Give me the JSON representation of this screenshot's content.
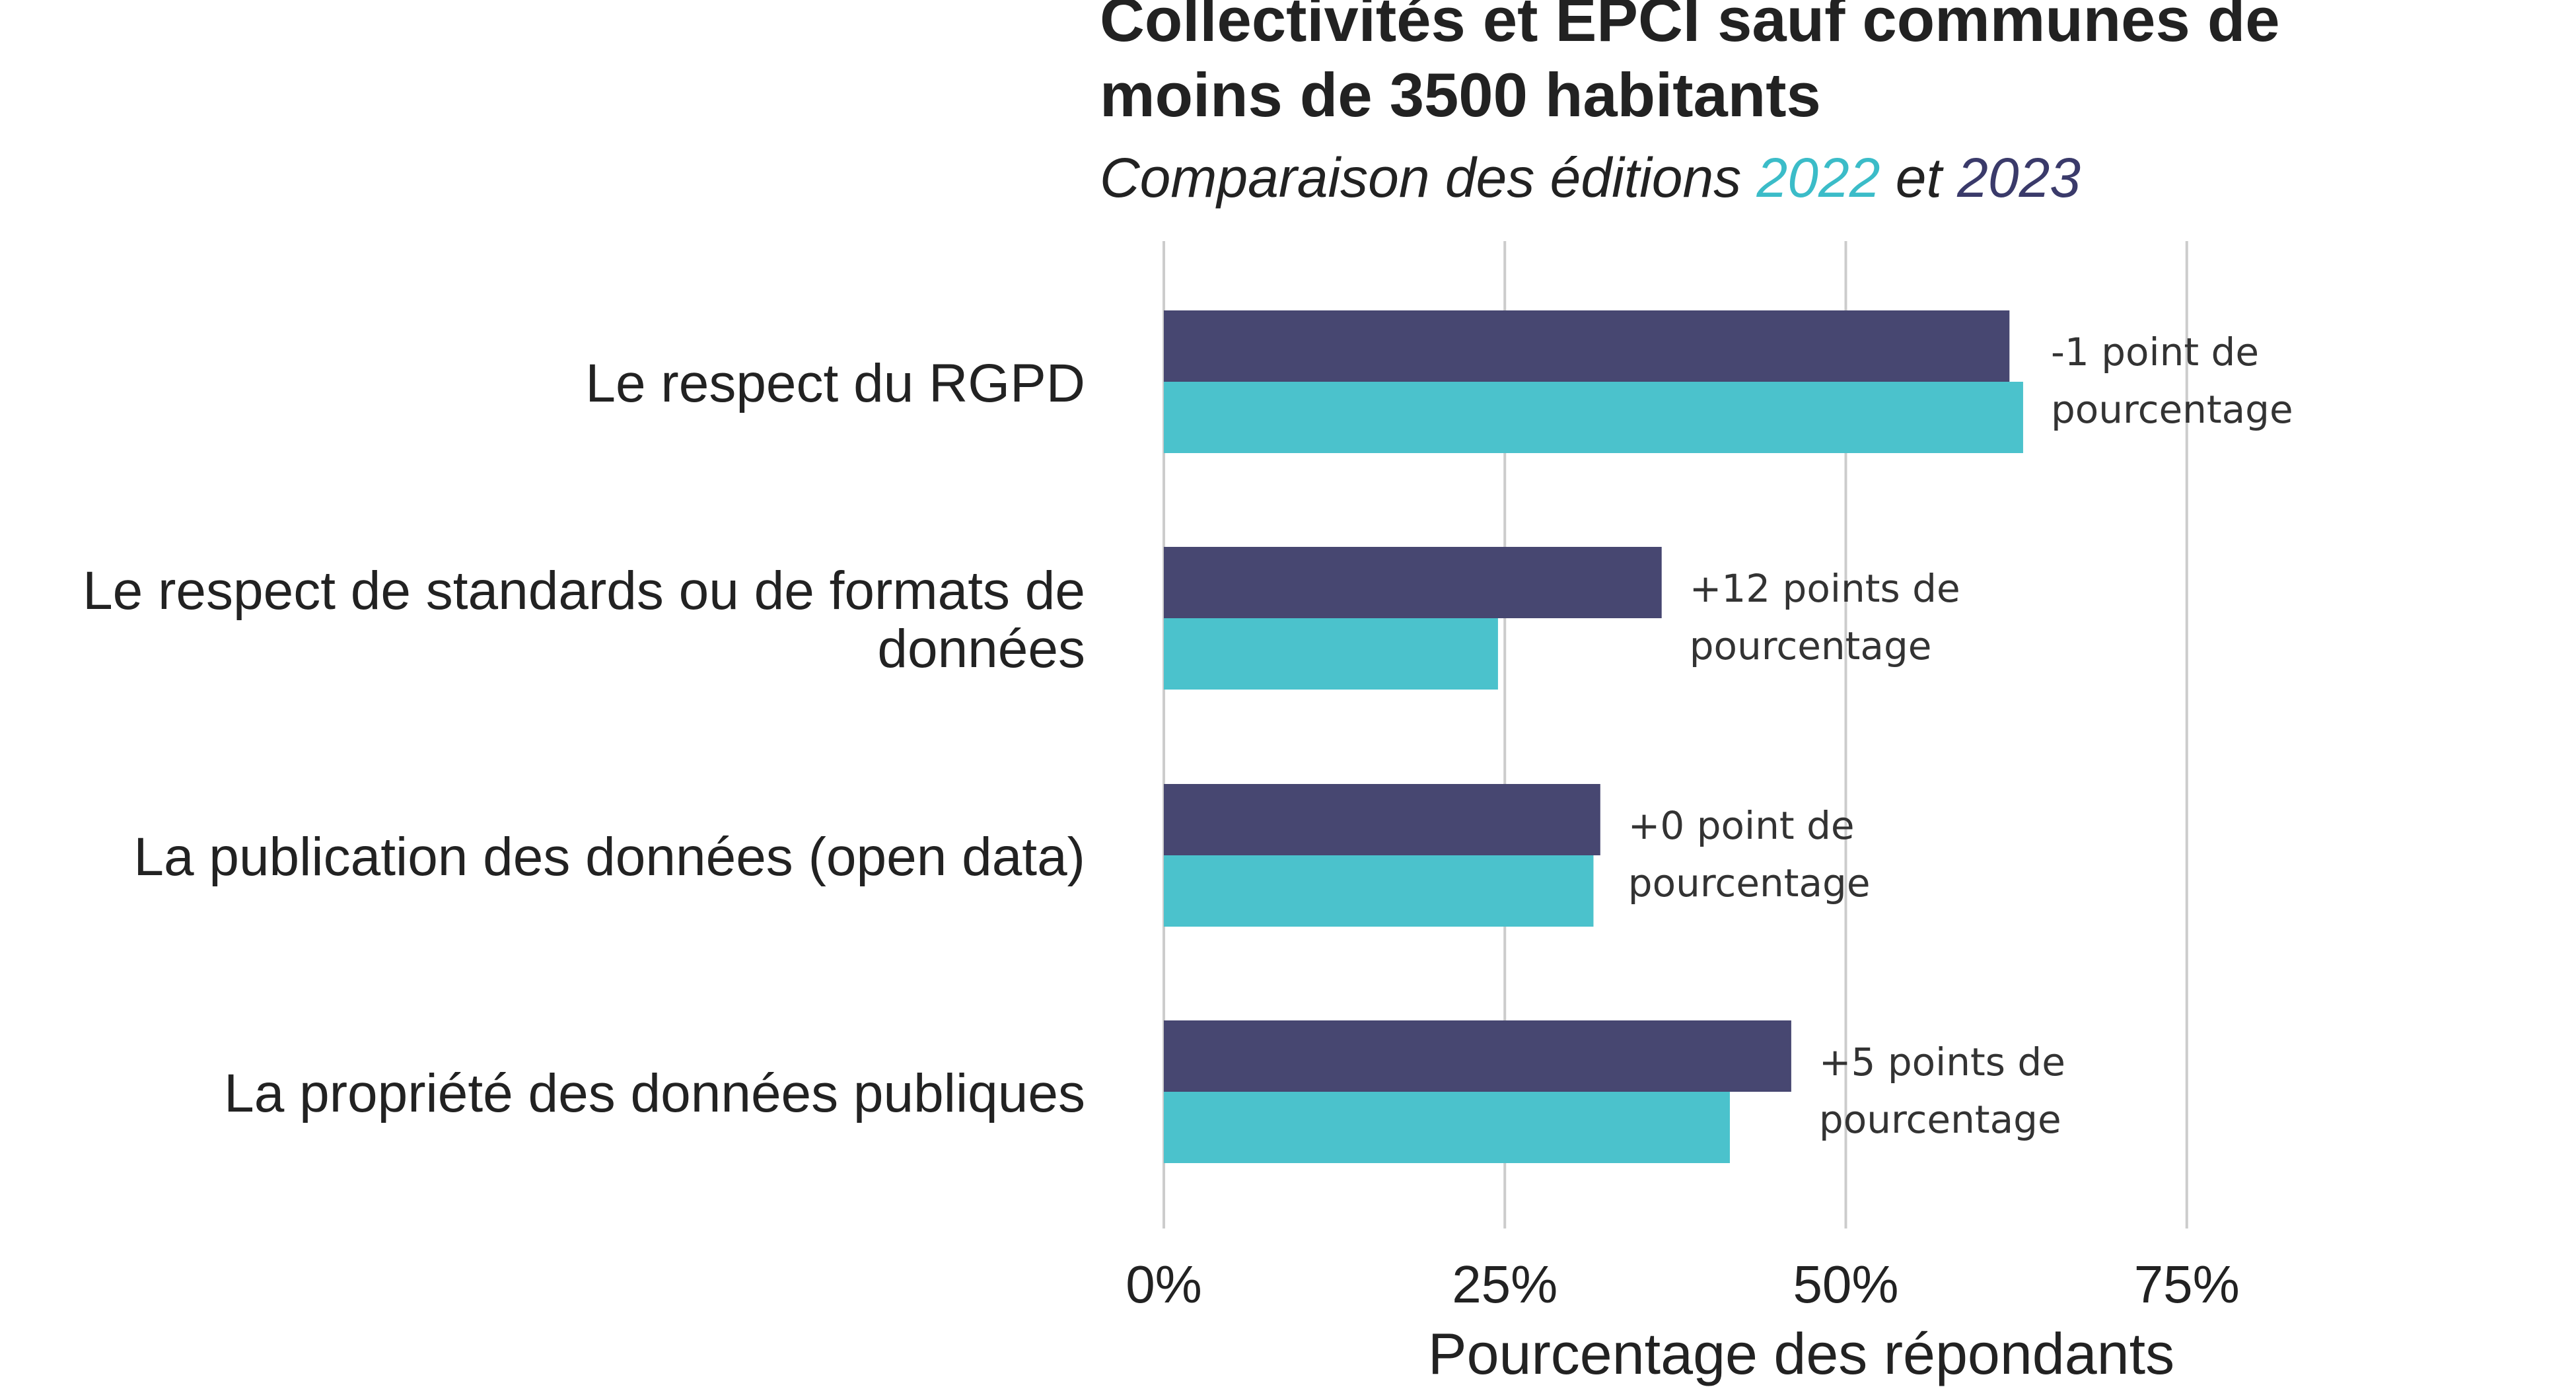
{
  "chart_data": {
    "type": "bar",
    "orientation": "horizontal",
    "title_lines": [
      "Collectivités et EPCI sauf communes de",
      "moins de 3500 habitants"
    ],
    "subtitle": {
      "prefix": "Comparaison des éditions ",
      "year_a": "2022",
      "joiner": " et ",
      "year_b": "2023"
    },
    "categories": [
      [
        "Le respect du RGPD"
      ],
      [
        "Le respect de standards ou de formats de",
        "données"
      ],
      [
        "La publication des données (open data)"
      ],
      [
        "La propriété des données publiques"
      ]
    ],
    "series": [
      {
        "name": "2023",
        "color": "#474771",
        "values": [
          62,
          36.5,
          32,
          46
        ]
      },
      {
        "name": "2022",
        "color": "#4bc2cc",
        "values": [
          63,
          24.5,
          31.5,
          41.5
        ]
      }
    ],
    "annotations": [
      [
        "-1 point de",
        "pourcentage"
      ],
      [
        "+12 points de",
        "pourcentage"
      ],
      [
        "+0 point de",
        "pourcentage"
      ],
      [
        "+5 points de",
        "pourcentage"
      ]
    ],
    "xlabel": "Pourcentage des répondants",
    "xlim": [
      0,
      100
    ],
    "xticks": [
      0,
      25,
      50,
      75
    ],
    "xtick_labels": [
      "0%",
      "25%",
      "50%",
      "75%"
    ],
    "grid": "vertical",
    "legend": "none"
  }
}
